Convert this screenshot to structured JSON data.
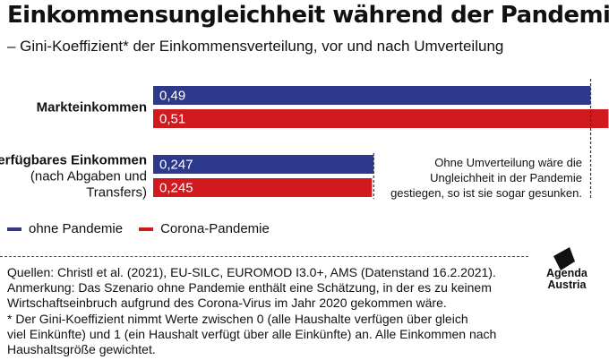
{
  "header": {
    "title": "Einkommensungleichheit während der Pandemie",
    "subtitle": "– Gini-Koeffizient* der Einkommensverteilung, vor und nach Umverteilung"
  },
  "colors": {
    "ohne_pandemie": "#2d3a8c",
    "corona_pandemie": "#d11920",
    "text": "#111111"
  },
  "chart_data": {
    "type": "bar",
    "orientation": "horizontal",
    "categories": [
      {
        "label": "Markteinkommen",
        "sublabel": []
      },
      {
        "label": "Verfügbares Einkommen",
        "sublabel": [
          "(nach Abgaben und",
          "Transfers)"
        ]
      }
    ],
    "series": [
      {
        "name": "ohne Pandemie",
        "color": "#2d3a8c",
        "values": [
          0.49,
          0.247
        ],
        "labels": [
          "0,49",
          "0,247"
        ]
      },
      {
        "name": "Corona-Pandemie",
        "color": "#d11920",
        "values": [
          0.51,
          0.245
        ],
        "labels": [
          "0,51",
          "0,245"
        ]
      }
    ],
    "annotation": [
      "Ohne Umverteilung wäre die",
      "Ungleichheit in der Pandemie",
      "gestiegen, so ist sie sogar gesunken."
    ],
    "legend_position": "bottom-left",
    "grid": false
  },
  "footer": {
    "notes": [
      "Quellen: Christl et al. (2021), EU-SILC, EUROMOD I3.0+, AMS (Datenstand 16.2.2021).",
      "Anmerkung: Das Szenario ohne Pandemie enthält eine Schätzung, in der es zu keinem",
      "Wirtschaftseinbruch aufgrund des Corona-Virus im Jahr 2020 gekommen wäre.",
      "* Der Gini-Koeffizient nimmt Werte zwischen 0 (alle Haushalte verfügen über gleich",
      "viel Einkünfte) und 1 (ein Haushalt verfügt über alle Einkünfte) an. Alle Einkommen nach",
      "Haushaltsgröße gewichtet."
    ],
    "logo_text": [
      "Agenda",
      "Austria"
    ]
  }
}
